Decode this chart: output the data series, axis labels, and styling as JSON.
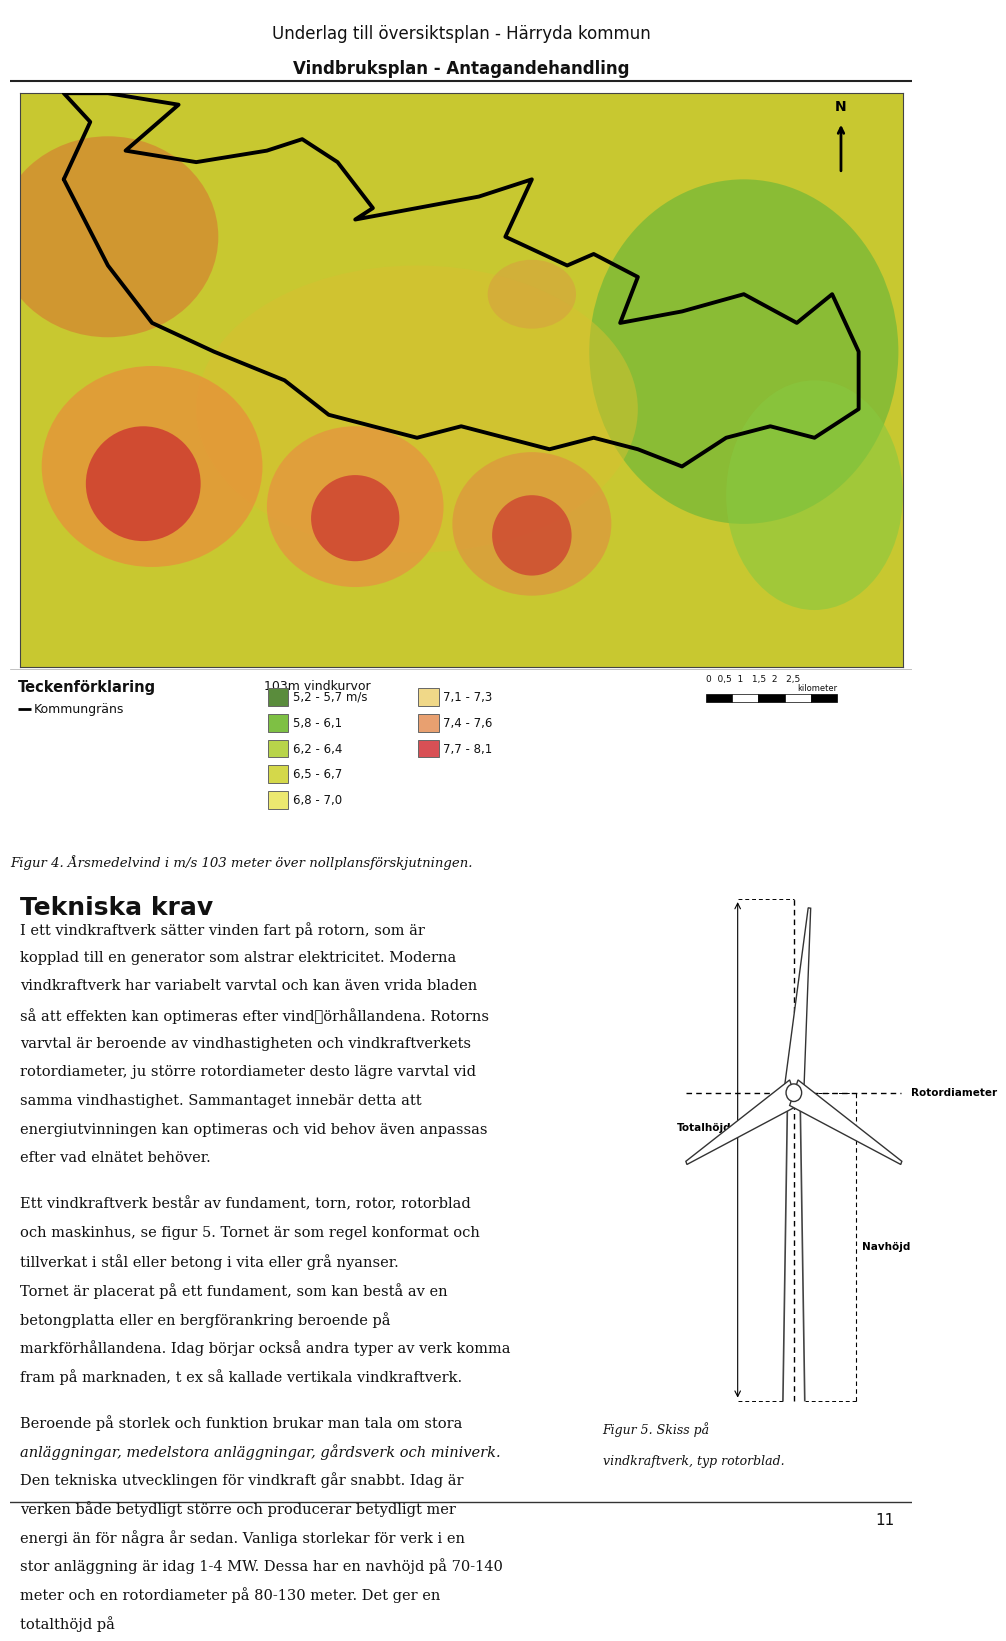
{
  "header_line1": "Underlag till översiktsplan - Härryda kommun",
  "header_line2": "Vindbruksplan - Antagandehandling",
  "teckenforklaring_title": "Teckenförklaring",
  "kommungrans_label": "Kommungräns",
  "vindkurvor_title": "103m vindkurvor",
  "legend_items_left": [
    {
      "color": "#5a8c3c",
      "label": "5,2 - 5,7 m/s"
    },
    {
      "color": "#7ec044",
      "label": "5,8 - 6,1"
    },
    {
      "color": "#b8d44a",
      "label": "6,2 - 6,4"
    },
    {
      "color": "#d4d84a",
      "label": "6,5 - 6,7"
    },
    {
      "color": "#ece870",
      "label": "6,8 - 7,0"
    }
  ],
  "legend_items_right": [
    {
      "color": "#f0d888",
      "label": "7,1 - 7,3"
    },
    {
      "color": "#e8a070",
      "label": "7,4 - 7,6"
    },
    {
      "color": "#d85055",
      "label": "7,7 - 8,1"
    }
  ],
  "figure_caption": "Figur 4. Årsmedelvind i m/s 103 meter över nollplansförskjutningen.",
  "section_title": "Tekniska krav",
  "paragraph1": "I ett vindkraftverk sätter vinden fart på rotorn, som är kopplad till en generator som alstrar elektricitet. Moderna vindkraftverk har variabelt varvtal och kan även vrida bladen så att effekten kan optimeras efter vindفörhållandena. Rotorns varvtal är beroende av vindhastigheten och vindkraftverkets rotordiameter, ju större rotordiameter desto lägre varvtal vid samma vindhastighet. Sammantaget innebär detta att energiutvinningen kan optimeras och vid behov även anpassas efter vad elnätet behöver.",
  "paragraph2": "Ett vindkraftverk består av fundament, torn, rotor, rotorblad och maskinhus, se figur 5. Tornet är som regel konformat och tillverkat i stål eller betong i vita eller grå nyanser. Tornet är placerat på ett fundament, som kan bestå av en betongplatta eller en bergförankring beroende på markförhållandena. Idag börjar också andra typer av verk komma fram på marknaden, t ex så kallade vertikala vindkraftverk.",
  "paragraph3_pre_italic": "Beroende på storlek och funktion brukar man tala om ",
  "paragraph3_italic": "stora anläggningar, medelstora anläggningar, gårdsverk och miniverk.",
  "paragraph3_post_italic": " Den tekniska utvecklingen för vindkraft går snabbt. Idag är verken både betydligt större och producerar betydligt mer energi än för några år sedan. Vanliga storlekar för verk i en stor anläggning är idag 1-4 MW. Dessa har en navhöjd på 70-140 meter och en rotordiameter på 80-130 meter. Det ger en totalthöjd på",
  "figure5_caption_line1": "Figur 5. Skiss på",
  "figure5_caption_line2": "vindkraftverk, typ rotorblad.",
  "page_number": "11",
  "background_color": "#ffffff",
  "header_color": "#111111",
  "text_color": "#111111",
  "map_bg_color": "#c8c840",
  "map_blob_colors": {
    "yellow_green": "#c8c840",
    "green": "#6aaa38",
    "light_green": "#90c040",
    "orange": "#e89050",
    "red": "#cc3030",
    "light_yellow": "#e0dc80"
  }
}
